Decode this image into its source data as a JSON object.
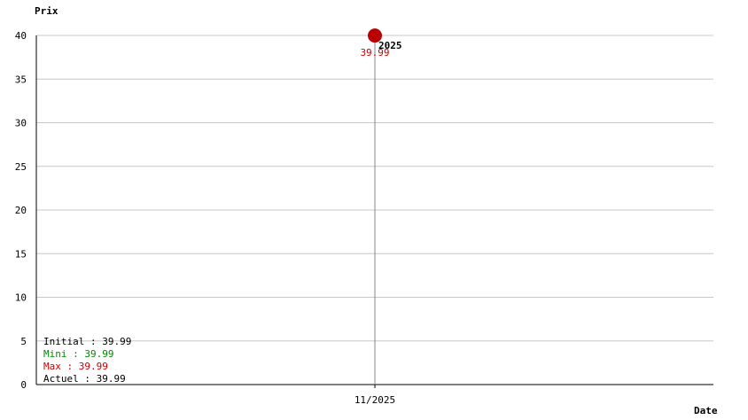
{
  "chart_data": {
    "type": "line",
    "xlabel": "Date",
    "ylabel": "Prix",
    "ylim": [
      0,
      40
    ],
    "yticks": [
      0,
      5,
      10,
      15,
      20,
      25,
      30,
      35,
      40
    ],
    "grid": true,
    "categories": [
      "11/2025"
    ],
    "points": [
      {
        "x": "11/2025",
        "y": 39.99,
        "label": "39.99",
        "year_label": "2025"
      }
    ],
    "summary": [
      {
        "label": "Initial : 39.99",
        "color": "#000000"
      },
      {
        "label": "Mini : 39.99",
        "color": "#008800"
      },
      {
        "label": "Max : 39.99",
        "color": "#cc0000"
      },
      {
        "label": "Actuel : 39.99",
        "color": "#000000"
      }
    ],
    "colors": {
      "point": "#bb0000",
      "value_label": "#cc0000",
      "grid": "#c8c8c8",
      "drop_line": "#888888"
    }
  }
}
